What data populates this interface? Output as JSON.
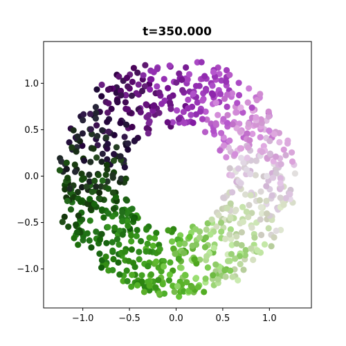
{
  "chart_data": {
    "type": "scatter",
    "title": "t=350.000",
    "xlabel": "",
    "ylabel": "",
    "xlim": [
      -1.42,
      1.45
    ],
    "ylim": [
      -1.42,
      1.45
    ],
    "xticks": [
      -1.0,
      -0.5,
      0.0,
      0.5,
      1.0
    ],
    "xtick_labels": [
      "−1.0",
      "−0.5",
      "0.0",
      "0.5",
      "1.0"
    ],
    "yticks": [
      -1.0,
      -0.5,
      0.0,
      0.5,
      1.0
    ],
    "ytick_labels": [
      "−1.0",
      "−0.5",
      "0.0",
      "0.5",
      "1.0"
    ],
    "grid": false,
    "legend": "none",
    "colormap": "PRGn",
    "colormap_colors": [
      "#00441b",
      "#1b7837",
      "#5aae61",
      "#a6dba0",
      "#d9f0d3",
      "#e7d4e8",
      "#c2a5cf",
      "#9970ab",
      "#762a83",
      "#40004b"
    ],
    "annulus": {
      "center": [
        0.0,
        -0.02
      ],
      "inner_radius": 0.56,
      "outer_radius": 1.27,
      "point_count": 900
    },
    "color_by_angle_deg": [
      {
        "angle": 180,
        "color": "#1b3d12"
      },
      {
        "angle": 210,
        "color": "#1a6a12"
      },
      {
        "angle": 240,
        "color": "#2e8b16"
      },
      {
        "angle": 270,
        "color": "#5bb82a"
      },
      {
        "angle": 300,
        "color": "#a9dc86"
      },
      {
        "angle": 330,
        "color": "#d4dcc0"
      },
      {
        "angle": 0,
        "color": "#dccfe0"
      },
      {
        "angle": 30,
        "color": "#d99ad9"
      },
      {
        "angle": 60,
        "color": "#b14fc8"
      },
      {
        "angle": 90,
        "color": "#8d28ad"
      },
      {
        "angle": 120,
        "color": "#4e0a5e"
      },
      {
        "angle": 150,
        "color": "#22103a"
      }
    ],
    "marker_color_by_angle_deg": [
      {
        "angle": 180,
        "color": "#1b3d12"
      },
      {
        "angle": 210,
        "color": "#1a6a12"
      },
      {
        "angle": 240,
        "color": "#2e8b16"
      },
      {
        "angle": 270,
        "color": "#5bb82a"
      },
      {
        "angle": 300,
        "color": "#a9dc86"
      },
      {
        "angle": 330,
        "color": "#d4dcc0"
      },
      {
        "angle": 0,
        "color": "#dccfe0"
      },
      {
        "angle": 30,
        "color": "#d99ad9"
      },
      {
        "angle": 60,
        "color": "#b14fc8"
      },
      {
        "angle": 90,
        "color": "#8d28ad"
      },
      {
        "angle": 120,
        "color": "#4e0a5e"
      },
      {
        "angle": 150,
        "color": "#22103a"
      }
    ]
  }
}
